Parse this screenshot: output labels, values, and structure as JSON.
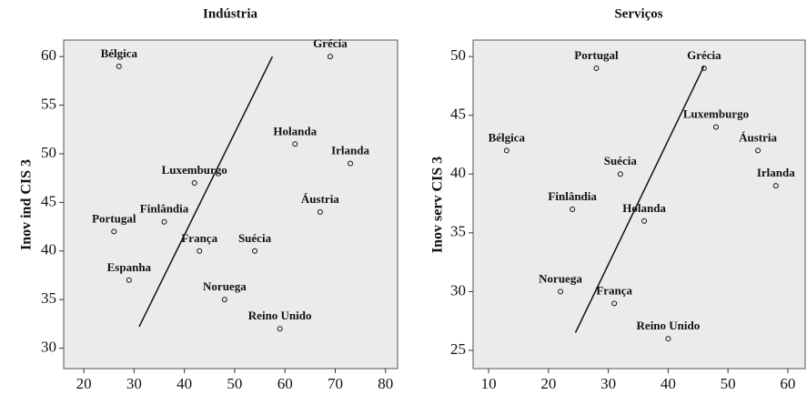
{
  "chart_data": [
    {
      "type": "scatter",
      "title": "Indústria",
      "ylabel": "Inov ind CIS 3",
      "x": [
        27,
        69,
        62,
        73,
        42,
        67,
        26,
        36,
        43,
        54,
        29,
        48,
        59
      ],
      "values": [
        59,
        60,
        51,
        49,
        47,
        44,
        42,
        43,
        40,
        40,
        37,
        35,
        32
      ],
      "labels": [
        "Bélgica",
        "Grécia",
        "Holanda",
        "Irlanda",
        "Luxemburgo",
        "Áustria",
        "Portugal",
        "Finlândia",
        "França",
        "Suécia",
        "Espanha",
        "Noruega",
        "Reino Unido"
      ],
      "fit_line": {
        "x": [
          31,
          57.5
        ],
        "y": [
          32.2,
          60
        ]
      },
      "xlim": [
        16,
        82.4
      ],
      "xticks": [
        20,
        30,
        40,
        50,
        60,
        70,
        80
      ],
      "ylim": [
        27.9,
        61.7
      ],
      "yticks": [
        30,
        35,
        40,
        45,
        50,
        55,
        60
      ]
    },
    {
      "type": "scatter",
      "title": "Serviços",
      "ylabel": "Inov serv CIS 3",
      "x": [
        28,
        46,
        48,
        13,
        55,
        32,
        58,
        24,
        36,
        22,
        31,
        40
      ],
      "values": [
        49,
        49,
        44,
        42,
        42,
        40,
        39,
        37,
        36,
        30,
        29,
        26
      ],
      "labels": [
        "Portugal",
        "Grécia",
        "Luxemburgo",
        "Bélgica",
        "Áustria",
        "Suécia",
        "Irlanda",
        "Finlândia",
        "Holanda",
        "Noruega",
        "França",
        "Reino Unido"
      ],
      "fit_line": {
        "x": [
          24.5,
          46
        ],
        "y": [
          26.5,
          49.2
        ]
      },
      "xlim": [
        7.4,
        62.9
      ],
      "xticks": [
        10,
        20,
        30,
        40,
        50,
        60
      ],
      "ylim": [
        23.45,
        51.4
      ],
      "yticks": [
        25,
        30,
        35,
        40,
        45,
        50
      ]
    }
  ]
}
